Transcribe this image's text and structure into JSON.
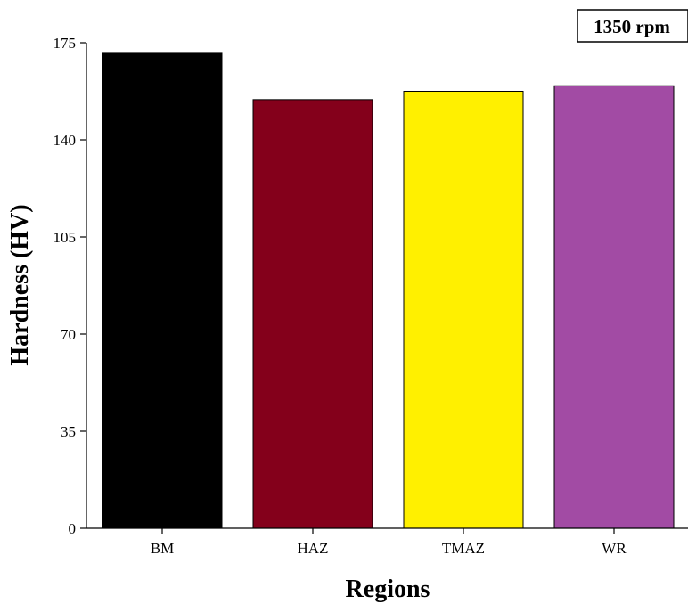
{
  "chart_data": {
    "type": "bar",
    "title": "",
    "xlabel": "Regions",
    "ylabel": "Hardness (HV)",
    "categories": [
      "BM",
      "HAZ",
      "TMAZ",
      "WR"
    ],
    "values": [
      171.5,
      154.5,
      157.5,
      159.5
    ],
    "bar_colors": [
      "#000000",
      "#84001b",
      "#fff000",
      "#a24ba4"
    ],
    "yticks": [
      0,
      35,
      70,
      105,
      140,
      175
    ],
    "ylim": [
      0,
      175
    ],
    "grid": false,
    "legend": {
      "label": "1350 rpm",
      "placement": "top-right"
    }
  }
}
